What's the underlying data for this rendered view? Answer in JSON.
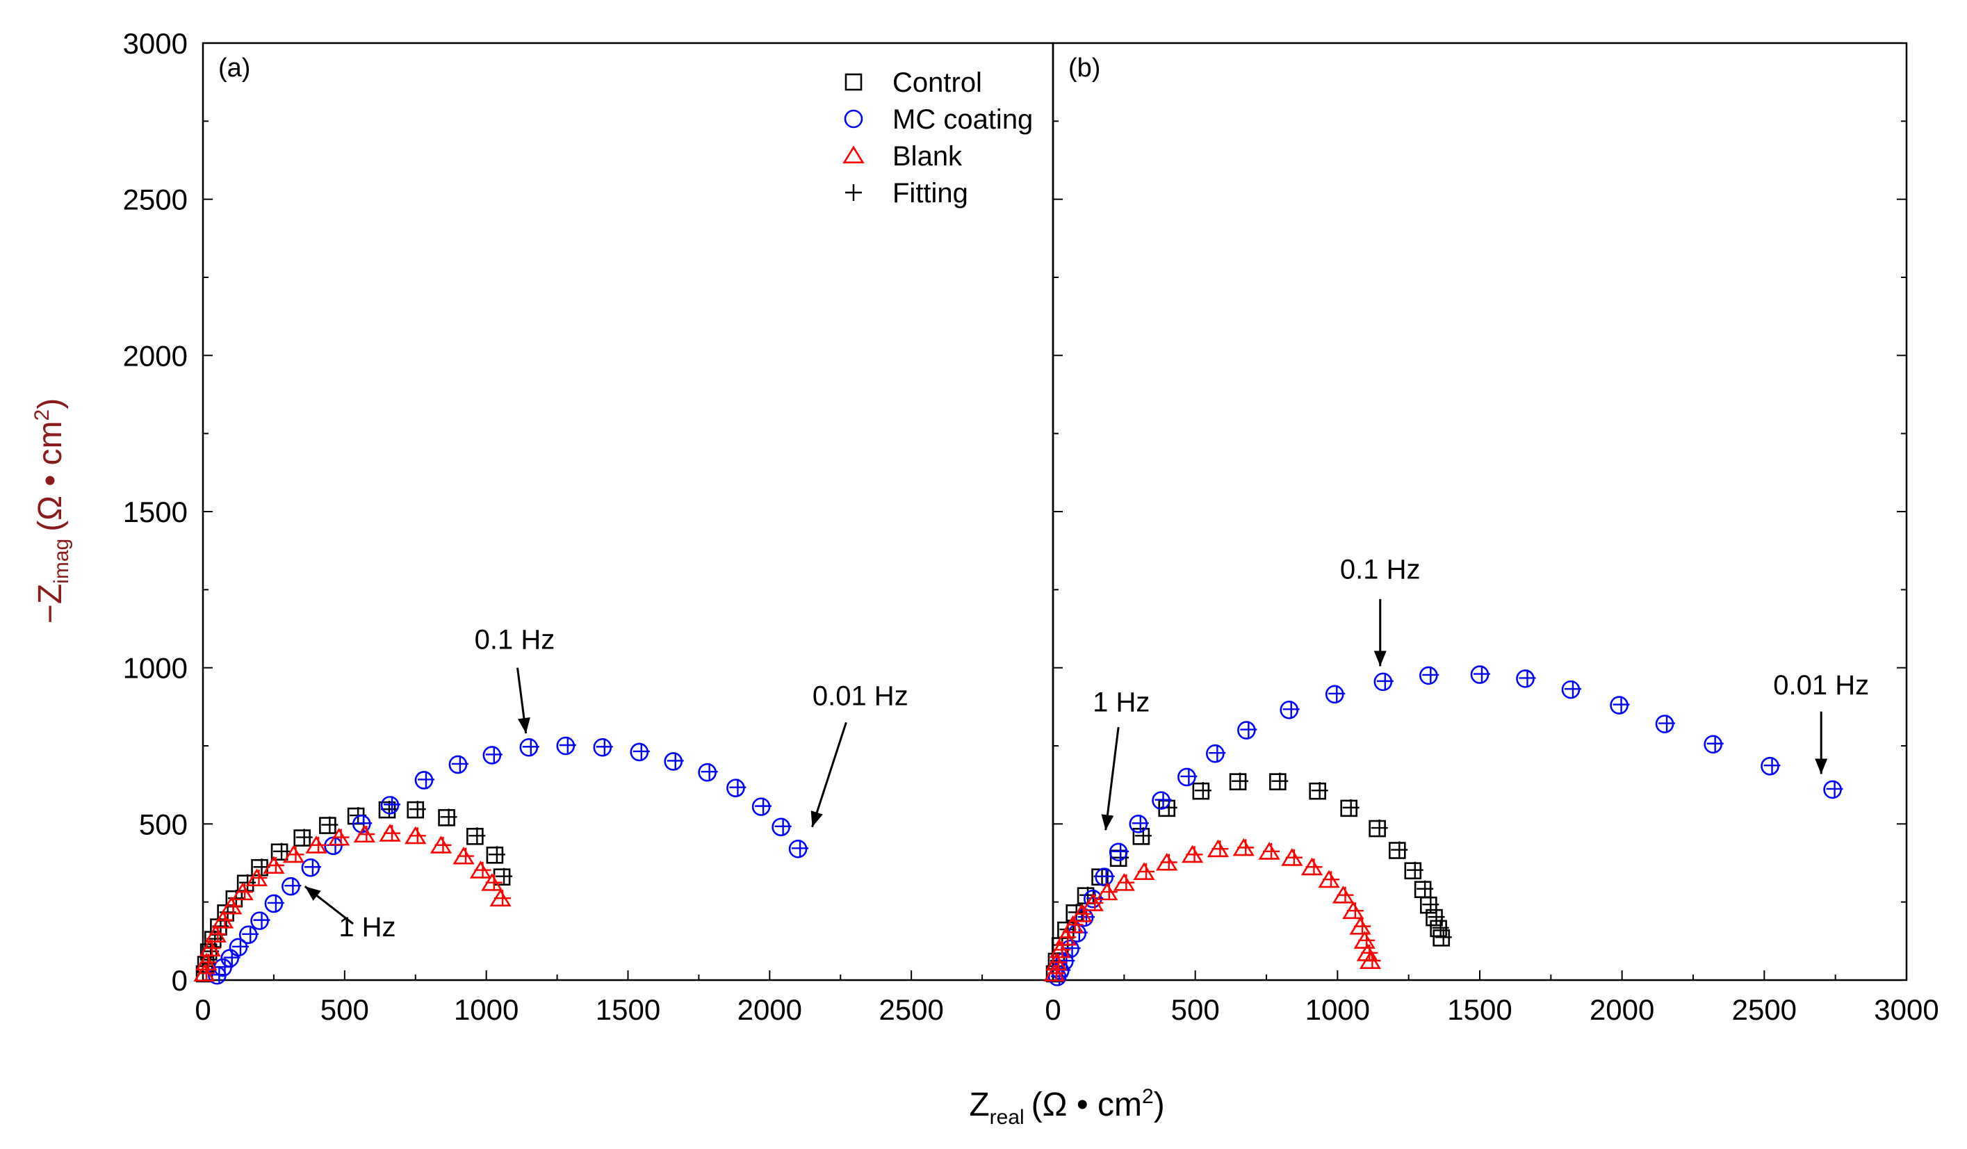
{
  "chart_data": {
    "type": "scatter",
    "ylabel": {
      "main": "−Z",
      "sub": "imag",
      "unit": "(Ω • cm",
      "sup": "2",
      "close": ")"
    },
    "xlabel": {
      "main": "Z",
      "sub": "real",
      "unit": "(Ω • cm",
      "sup": "2",
      "close": ")"
    },
    "ylim": [
      0,
      3000
    ],
    "y_ticks": [
      "0",
      "500",
      "1000",
      "1500",
      "2000",
      "2500",
      "3000"
    ],
    "legend": [
      "Control",
      "MC coating",
      "Blank",
      "Fitting"
    ],
    "colors": {
      "Control": "#000000",
      "MC coating": "#0000ff",
      "Blank": "#ff0000",
      "Fitting_control": "#000000",
      "Fitting_mc": "#0000ff",
      "Fitting_blank": "#ff0000"
    },
    "markers": {
      "Control": "square",
      "MC coating": "circle",
      "Blank": "triangle",
      "Fitting": "plus"
    },
    "panels": [
      {
        "label": "(a)",
        "xlim": [
          0,
          3000
        ],
        "x_ticks": [
          "0",
          "500",
          "1000",
          "1500",
          "2000",
          "2500"
        ],
        "series": [
          {
            "name": "Control",
            "points": [
              [
                5,
                20
              ],
              [
                10,
                50
              ],
              [
                20,
                90
              ],
              [
                35,
                130
              ],
              [
                55,
                170
              ],
              [
                80,
                215
              ],
              [
                110,
                260
              ],
              [
                150,
                310
              ],
              [
                200,
                360
              ],
              [
                270,
                410
              ],
              [
                350,
                455
              ],
              [
                440,
                495
              ],
              [
                540,
                525
              ],
              [
                650,
                545
              ],
              [
                750,
                545
              ],
              [
                860,
                520
              ],
              [
                960,
                460
              ],
              [
                1030,
                400
              ],
              [
                1055,
                330
              ]
            ]
          },
          {
            "name": "MC coating",
            "points": [
              [
                50,
                15
              ],
              [
                70,
                40
              ],
              [
                95,
                70
              ],
              [
                125,
                105
              ],
              [
                160,
                145
              ],
              [
                200,
                190
              ],
              [
                250,
                245
              ],
              [
                310,
                300
              ],
              [
                380,
                360
              ],
              [
                460,
                430
              ],
              [
                560,
                500
              ],
              [
                660,
                560
              ],
              [
                780,
                640
              ],
              [
                900,
                690
              ],
              [
                1020,
                720
              ],
              [
                1150,
                745
              ],
              [
                1280,
                750
              ],
              [
                1410,
                745
              ],
              [
                1540,
                730
              ],
              [
                1660,
                700
              ],
              [
                1780,
                665
              ],
              [
                1880,
                615
              ],
              [
                1970,
                555
              ],
              [
                2040,
                490
              ],
              [
                2100,
                420
              ]
            ]
          },
          {
            "name": "Blank",
            "points": [
              [
                5,
                20
              ],
              [
                12,
                55
              ],
              [
                25,
                100
              ],
              [
                45,
                145
              ],
              [
                70,
                190
              ],
              [
                100,
                235
              ],
              [
                140,
                280
              ],
              [
                190,
                325
              ],
              [
                250,
                365
              ],
              [
                320,
                400
              ],
              [
                400,
                430
              ],
              [
                480,
                455
              ],
              [
                570,
                465
              ],
              [
                660,
                468
              ],
              [
                750,
                460
              ],
              [
                840,
                430
              ],
              [
                920,
                395
              ],
              [
                980,
                350
              ],
              [
                1020,
                310
              ],
              [
                1050,
                260
              ]
            ]
          }
        ],
        "annotations": [
          {
            "text": "0.1 Hz",
            "x": 1100,
            "y": 1060
          },
          {
            "text": "0.01 Hz",
            "x": 2320,
            "y": 880
          },
          {
            "text": "1 Hz",
            "x": 580,
            "y": 140
          }
        ]
      },
      {
        "label": "(b)",
        "xlim": [
          0,
          3000
        ],
        "x_ticks": [
          "0",
          "500",
          "1000",
          "1500",
          "2000",
          "2500",
          "3000"
        ],
        "series": [
          {
            "name": "Control",
            "points": [
              [
                5,
                20
              ],
              [
                12,
                60
              ],
              [
                25,
                110
              ],
              [
                45,
                160
              ],
              [
                75,
                215
              ],
              [
                115,
                270
              ],
              [
                165,
                330
              ],
              [
                230,
                390
              ],
              [
                310,
                460
              ],
              [
                400,
                550
              ],
              [
                520,
                605
              ],
              [
                650,
                635
              ],
              [
                790,
                635
              ],
              [
                930,
                605
              ],
              [
                1040,
                550
              ],
              [
                1140,
                485
              ],
              [
                1210,
                415
              ],
              [
                1265,
                350
              ],
              [
                1300,
                290
              ],
              [
                1320,
                240
              ],
              [
                1340,
                200
              ],
              [
                1355,
                165
              ],
              [
                1365,
                135
              ]
            ]
          },
          {
            "name": "MC coating",
            "points": [
              [
                15,
                10
              ],
              [
                25,
                30
              ],
              [
                40,
                60
              ],
              [
                60,
                100
              ],
              [
                85,
                150
              ],
              [
                110,
                200
              ],
              [
                140,
                260
              ],
              [
                180,
                330
              ],
              [
                230,
                410
              ],
              [
                300,
                500
              ],
              [
                380,
                575
              ],
              [
                470,
                650
              ],
              [
                570,
                725
              ],
              [
                680,
                800
              ],
              [
                830,
                865
              ],
              [
                990,
                915
              ],
              [
                1160,
                955
              ],
              [
                1320,
                975
              ],
              [
                1500,
                978
              ],
              [
                1660,
                965
              ],
              [
                1820,
                930
              ],
              [
                1990,
                880
              ],
              [
                2150,
                820
              ],
              [
                2320,
                755
              ],
              [
                2520,
                685
              ],
              [
                2740,
                610
              ]
            ]
          },
          {
            "name": "Blank",
            "points": [
              [
                5,
                20
              ],
              [
                12,
                55
              ],
              [
                25,
                95
              ],
              [
                45,
                135
              ],
              [
                70,
                175
              ],
              [
                100,
                210
              ],
              [
                140,
                245
              ],
              [
                190,
                280
              ],
              [
                250,
                310
              ],
              [
                320,
                345
              ],
              [
                400,
                375
              ],
              [
                490,
                400
              ],
              [
                580,
                418
              ],
              [
                670,
                422
              ],
              [
                760,
                410
              ],
              [
                840,
                390
              ],
              [
                910,
                360
              ],
              [
                970,
                320
              ],
              [
                1020,
                270
              ],
              [
                1055,
                220
              ],
              [
                1080,
                170
              ],
              [
                1095,
                125
              ],
              [
                1105,
                85
              ],
              [
                1115,
                60
              ]
            ]
          }
        ],
        "annotations": [
          {
            "text": "1 Hz",
            "x": 240,
            "y": 860
          },
          {
            "text": "0.1 Hz",
            "x": 1150,
            "y": 1285
          },
          {
            "text": "0.01 Hz",
            "x": 2700,
            "y": 915
          }
        ]
      }
    ]
  }
}
